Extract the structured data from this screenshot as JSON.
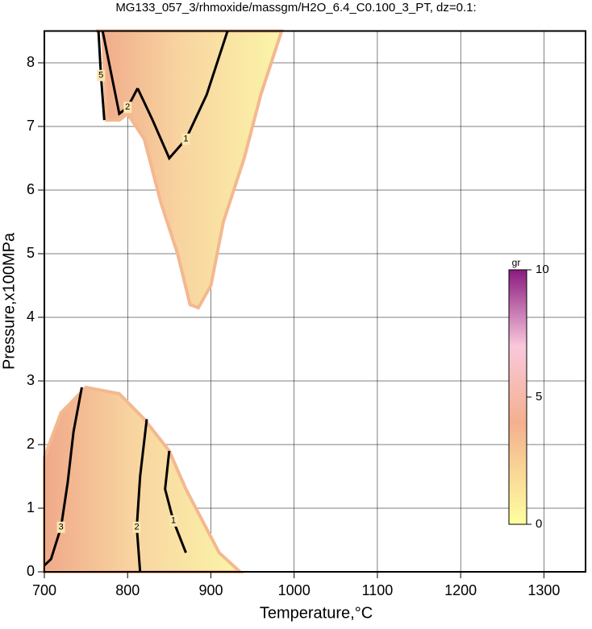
{
  "chart_data": {
    "type": "contour",
    "title": "MG133_057_3/rhmoxide/massgm/H2O_6.4_C0.100_3_PT, dz=0.1:",
    "xlabel": "Temperature,°C",
    "ylabel": "Pressure,x100MPa",
    "xlim": [
      700,
      1350
    ],
    "ylim": [
      0,
      8.5
    ],
    "xticks": [
      700,
      800,
      900,
      1000,
      1100,
      1200,
      1300
    ],
    "yticks": [
      0,
      1,
      2,
      3,
      4,
      5,
      6,
      7,
      8
    ],
    "grid": true,
    "regions": [
      {
        "x": [
          762,
          985,
          960,
          940,
          915,
          900,
          885,
          875,
          860,
          840,
          820,
          800,
          790,
          775,
          770
        ],
        "y": [
          8.5,
          8.5,
          7.5,
          6.5,
          5.5,
          4.5,
          4.15,
          4.2,
          5.0,
          5.8,
          6.8,
          7.2,
          7.1,
          7.1,
          8.5
        ]
      },
      {
        "x": [
          700,
          935,
          910,
          890,
          870,
          850,
          820,
          790,
          750,
          720,
          700
        ],
        "y": [
          0,
          0,
          0.3,
          0.8,
          1.3,
          1.9,
          2.4,
          2.8,
          2.9,
          2.5,
          1.8
        ]
      }
    ],
    "contours": [
      {
        "level": 1,
        "x": [
          812,
          830,
          850,
          870,
          895,
          920
        ],
        "y": [
          7.6,
          7.1,
          6.5,
          6.8,
          7.5,
          8.5
        ]
      },
      {
        "level": 2,
        "x": [
          770,
          790,
          800,
          812
        ],
        "y": [
          8.5,
          7.2,
          7.3,
          7.6
        ]
      },
      {
        "level": 5,
        "x": [
          765,
          768,
          772
        ],
        "y": [
          8.5,
          7.8,
          7.1
        ]
      },
      {
        "level": 3,
        "x": [
          745,
          735,
          728,
          720,
          708,
          700
        ],
        "y": [
          2.9,
          2.2,
          1.4,
          0.7,
          0.2,
          0.1
        ]
      },
      {
        "level": 2,
        "x": [
          823,
          815,
          811,
          815
        ],
        "y": [
          2.4,
          1.5,
          0.7,
          0
        ]
      },
      {
        "level": 1,
        "x": [
          850,
          845,
          855,
          870
        ],
        "y": [
          1.9,
          1.3,
          0.8,
          0.3
        ]
      }
    ],
    "colorbar": {
      "label": "gr",
      "lim": [
        0,
        10
      ],
      "ticks": [
        0,
        5,
        10
      ]
    }
  }
}
